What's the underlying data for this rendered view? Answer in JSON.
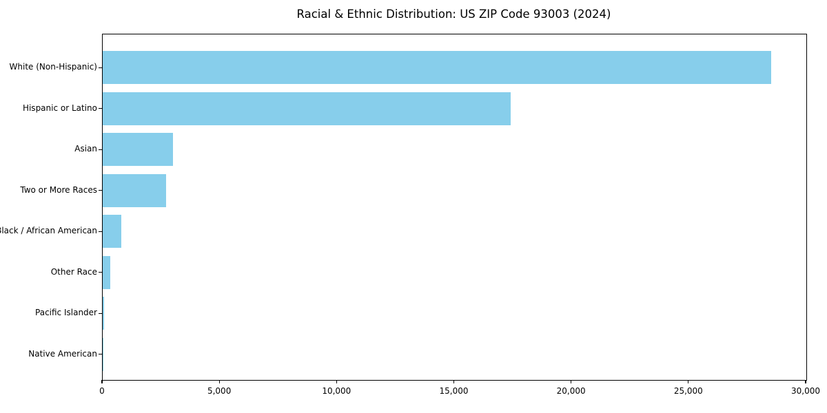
{
  "chart_data": {
    "type": "bar",
    "orientation": "horizontal",
    "title": "Racial & Ethnic Distribution: US ZIP Code 93003 (2024)",
    "categories": [
      "White (Non-Hispanic)",
      "Hispanic or Latino",
      "Asian",
      "Two or More Races",
      "Black / African American",
      "Other Race",
      "Pacific Islander",
      "Native American"
    ],
    "values": [
      28500,
      17400,
      3000,
      2700,
      800,
      330,
      45,
      10
    ],
    "xlabel": "",
    "ylabel": "",
    "xlim": [
      0,
      30000
    ],
    "xticks": [
      {
        "value": 0,
        "label": "0"
      },
      {
        "value": 5000,
        "label": "5,000"
      },
      {
        "value": 10000,
        "label": "10,000"
      },
      {
        "value": 15000,
        "label": "15,000"
      },
      {
        "value": 20000,
        "label": "20,000"
      },
      {
        "value": 25000,
        "label": "25,000"
      },
      {
        "value": 30000,
        "label": "30,000"
      }
    ],
    "bar_color": "#87CEEB",
    "grid": false,
    "legend": null
  }
}
